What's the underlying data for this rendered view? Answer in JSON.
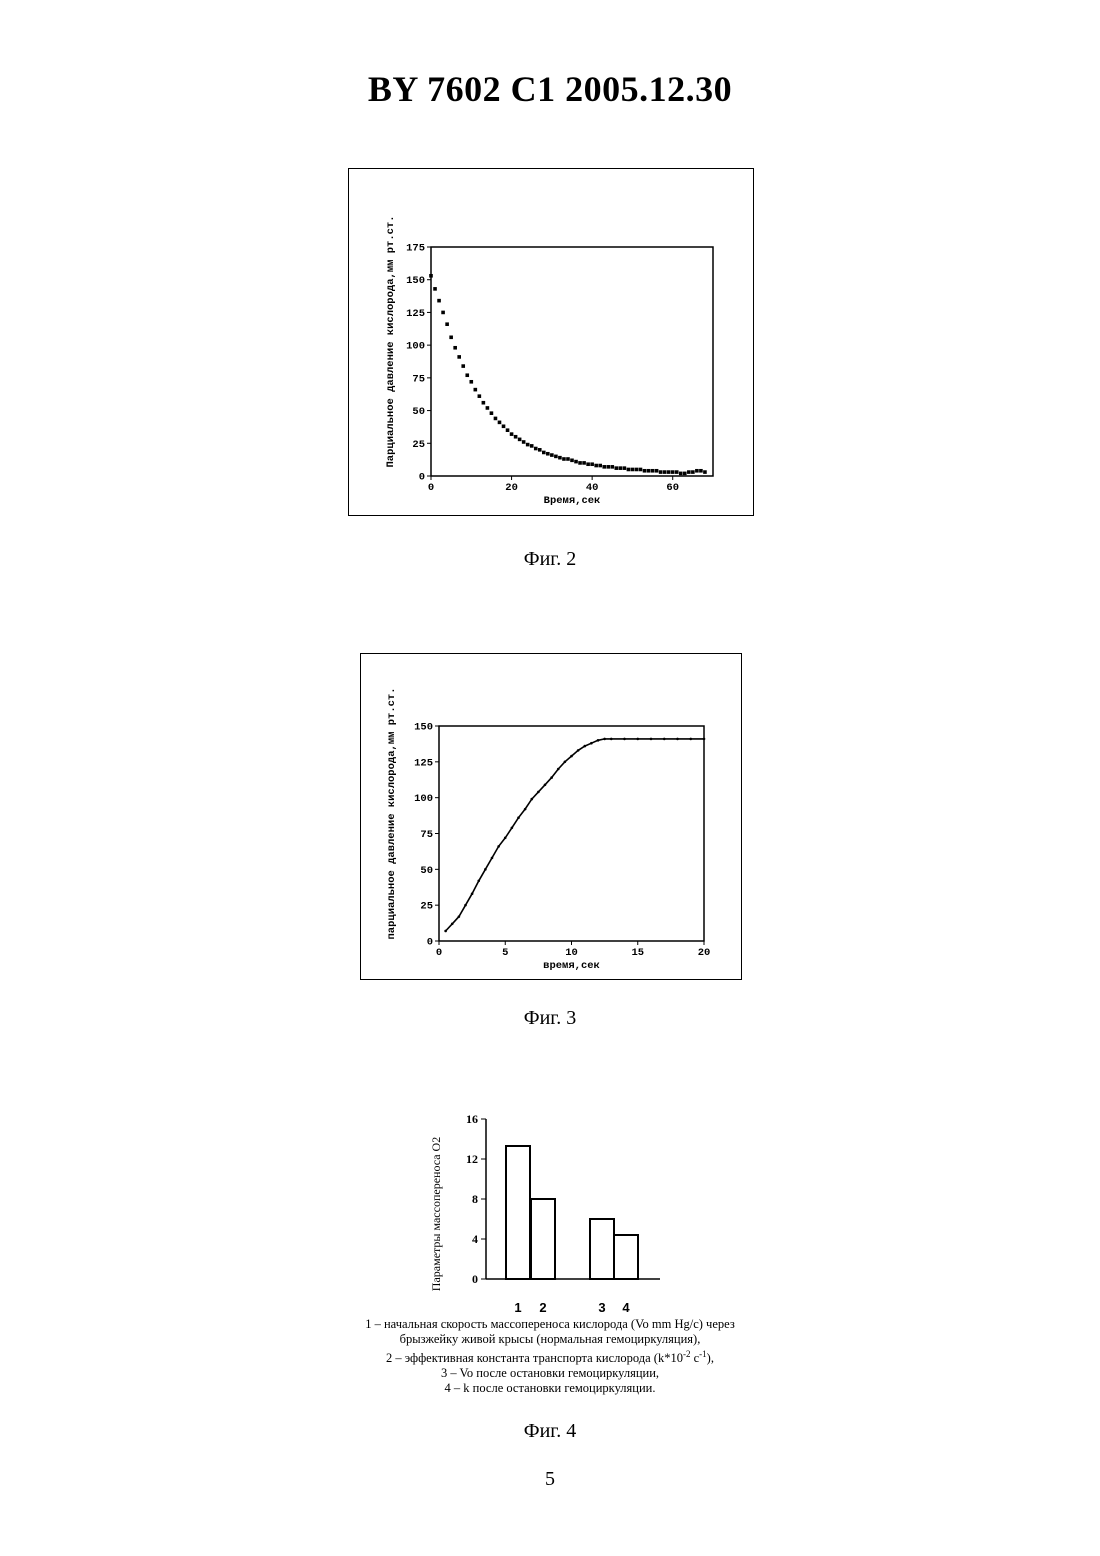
{
  "header": {
    "doc_id": "BY 7602 C1 2005.12.30"
  },
  "figures": [
    {
      "caption": "Фиг. 2"
    },
    {
      "caption": "Фиг. 3"
    },
    {
      "caption": "Фиг. 4",
      "legend": [
        "1 – начальная скорость массопереноса кислорода (Vo mm Hg/c)  через",
        "брызжейку живой крысы (нормальная гемоциркуляция),",
        "2 – эффективная константа транспорта кислорода (k*10",
        "3 – Vo после остановки гемоциркуляции,",
        "4 – k после остановки гемоциркуляции."
      ],
      "legend_sup1": "-2",
      "legend_mid": " с",
      "legend_sup2": "-1",
      "legend_end": "),"
    }
  ],
  "page_number": "5",
  "chart_data": [
    {
      "type": "scatter",
      "xlabel": "Время,сек",
      "ylabel": "Парциальное давление кислорода,мм рт.ст.",
      "xlim": [
        0,
        70
      ],
      "ylim": [
        0,
        175
      ],
      "xticks": [
        0,
        20,
        40,
        60
      ],
      "yticks": [
        0,
        25,
        50,
        75,
        100,
        125,
        150,
        175
      ],
      "x": [
        0,
        1,
        2,
        3,
        4,
        5,
        6,
        7,
        8,
        9,
        10,
        11,
        12,
        13,
        14,
        15,
        16,
        17,
        18,
        19,
        20,
        21,
        22,
        23,
        24,
        25,
        26,
        27,
        28,
        29,
        30,
        31,
        32,
        33,
        34,
        35,
        36,
        37,
        38,
        39,
        40,
        41,
        42,
        43,
        44,
        45,
        46,
        47,
        48,
        49,
        50,
        51,
        52,
        53,
        54,
        55,
        56,
        57,
        58,
        59,
        60,
        61,
        62,
        63,
        64,
        65,
        66,
        67,
        68
      ],
      "y": [
        153,
        143,
        134,
        125,
        116,
        106,
        98,
        91,
        84,
        77,
        72,
        66,
        61,
        56,
        52,
        48,
        44,
        41,
        38,
        35,
        32,
        30,
        28,
        26,
        24,
        23,
        21,
        20,
        18,
        17,
        16,
        15,
        14,
        13,
        13,
        12,
        11,
        10,
        10,
        9,
        9,
        8,
        8,
        7,
        7,
        7,
        6,
        6,
        6,
        5,
        5,
        5,
        5,
        4,
        4,
        4,
        4,
        3,
        3,
        3,
        3,
        3,
        2,
        2,
        3,
        3,
        4,
        4,
        3
      ]
    },
    {
      "type": "line",
      "xlabel": "время,сек",
      "ylabel": "парциальное давление кислорода,мм рт.ст.",
      "xlim": [
        0,
        20
      ],
      "ylim": [
        0,
        150
      ],
      "xticks": [
        0,
        5,
        10,
        15,
        20
      ],
      "yticks": [
        0,
        25,
        50,
        75,
        100,
        125,
        150
      ],
      "x": [
        0.5,
        1,
        1.5,
        2,
        2.5,
        3,
        3.5,
        4,
        4.5,
        5,
        5.5,
        6,
        6.5,
        7,
        7.5,
        8,
        8.5,
        9,
        9.5,
        10,
        10.5,
        11,
        11.5,
        12,
        12.5,
        13,
        14,
        15,
        16,
        17,
        18,
        19,
        20
      ],
      "y": [
        7,
        12,
        17,
        25,
        33,
        42,
        50,
        58,
        66,
        72,
        79,
        86,
        92,
        99,
        104,
        109,
        114,
        120,
        125,
        129,
        133,
        136,
        138,
        140,
        141,
        141,
        141,
        141,
        141,
        141,
        141,
        141,
        141
      ]
    },
    {
      "type": "bar",
      "ylabel": "Параметры массопереноса О2",
      "ylim": [
        0,
        16
      ],
      "yticks": [
        0,
        4,
        8,
        12,
        16
      ],
      "categories": [
        "1",
        "2",
        "3",
        "4"
      ],
      "values": [
        13.3,
        8.0,
        6.0,
        4.4
      ]
    }
  ]
}
